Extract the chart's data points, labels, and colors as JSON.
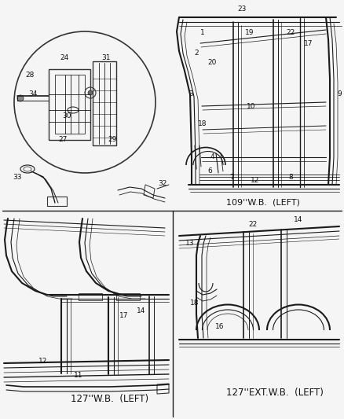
{
  "bg_color": "#f5f5f5",
  "line_color": "#1a1a1a",
  "text_color": "#111111",
  "section_labels": {
    "top_right": "109''W.B.  (LEFT)",
    "bottom_left": "127''W.B.  (LEFT)",
    "bottom_right": "127''EXT.W.B.  (LEFT)"
  },
  "figsize": [
    4.38,
    5.33
  ],
  "dpi": 100
}
